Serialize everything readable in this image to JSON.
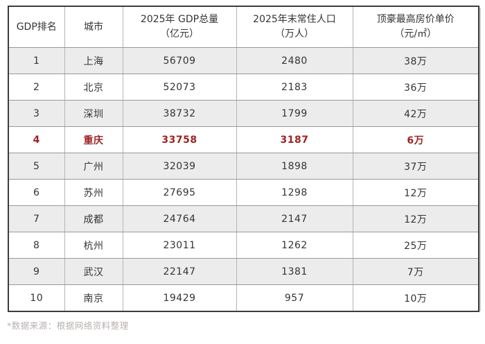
{
  "table": {
    "headers": [
      {
        "label": "GDP排名",
        "sub": ""
      },
      {
        "label": "城市",
        "sub": ""
      },
      {
        "label": "2025年 GDP总量",
        "sub": "（亿元）"
      },
      {
        "label": "2025年末常住人口",
        "sub": "（万人）"
      },
      {
        "label": "顶豪最高房价单价",
        "sub": "（元/㎡）"
      }
    ],
    "rows": [
      {
        "rank": "1",
        "city": "上海",
        "gdp": "56709",
        "population": "2480",
        "price": "38万",
        "highlight": false
      },
      {
        "rank": "2",
        "city": "北京",
        "gdp": "52073",
        "population": "2183",
        "price": "36万",
        "highlight": false
      },
      {
        "rank": "3",
        "city": "深圳",
        "gdp": "38732",
        "population": "1799",
        "price": "42万",
        "highlight": false
      },
      {
        "rank": "4",
        "city": "重庆",
        "gdp": "33758",
        "population": "3187",
        "price": "6万",
        "highlight": true
      },
      {
        "rank": "5",
        "city": "广州",
        "gdp": "32039",
        "population": "1898",
        "price": "37万",
        "highlight": false
      },
      {
        "rank": "6",
        "city": "苏州",
        "gdp": "27695",
        "population": "1298",
        "price": "12万",
        "highlight": false
      },
      {
        "rank": "7",
        "city": "成都",
        "gdp": "24764",
        "population": "2147",
        "price": "12万",
        "highlight": false
      },
      {
        "rank": "8",
        "city": "杭州",
        "gdp": "23011",
        "population": "1262",
        "price": "25万",
        "highlight": false
      },
      {
        "rank": "9",
        "city": "武汉",
        "gdp": "22147",
        "population": "1381",
        "price": "7万",
        "highlight": false
      },
      {
        "rank": "10",
        "city": "南京",
        "gdp": "19429",
        "population": "957",
        "price": "10万",
        "highlight": false
      }
    ]
  },
  "footer": {
    "note": "*数据来源：根据网络资料整理"
  },
  "colors": {
    "highlight_text": "#9e2222",
    "row_alt_bg": "#ececec",
    "outer_border": "#3c3c3c",
    "inner_border_h": "#989898",
    "inner_border_v": "#b5b5b5",
    "text": "#333333",
    "note_text": "#b8b0ae"
  },
  "chart_data": {
    "type": "table",
    "title": "",
    "columns": [
      "GDP排名",
      "城市",
      "2025年 GDP总量（亿元）",
      "2025年末常住人口（万人）",
      "顶豪最高房价单价（元/㎡）"
    ],
    "rows": [
      [
        1,
        "上海",
        56709,
        2480,
        "38万"
      ],
      [
        2,
        "北京",
        52073,
        2183,
        "36万"
      ],
      [
        3,
        "深圳",
        38732,
        1799,
        "42万"
      ],
      [
        4,
        "重庆",
        33758,
        3187,
        "6万"
      ],
      [
        5,
        "广州",
        32039,
        1898,
        "37万"
      ],
      [
        6,
        "苏州",
        27695,
        1298,
        "12万"
      ],
      [
        7,
        "成都",
        24764,
        2147,
        "12万"
      ],
      [
        8,
        "杭州",
        23011,
        1262,
        "25万"
      ],
      [
        9,
        "武汉",
        22147,
        1381,
        "7万"
      ],
      [
        10,
        "南京",
        19429,
        957,
        "10万"
      ]
    ],
    "highlighted_row_city": "重庆",
    "zebra_striping": "odd ranks shaded gray",
    "annotations": [
      "*数据来源：根据网络资料整理"
    ]
  }
}
